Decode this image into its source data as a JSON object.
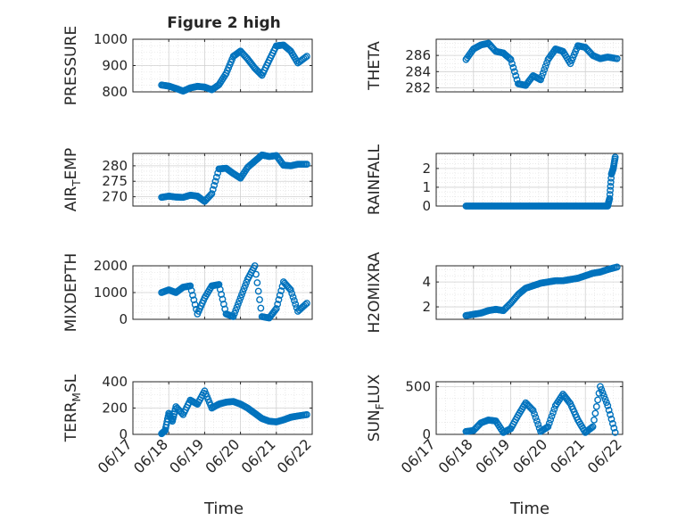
{
  "figure": {
    "title": "Figure 2 high",
    "xlabel": "Time",
    "marker_color": "#0072bd"
  },
  "chart_data": [
    {
      "type": "scatter",
      "ylabel": "PRESSURE",
      "ylim": [
        800,
        1000
      ],
      "yticks": [
        800,
        900,
        1000
      ],
      "ytick_labels": [
        "800",
        "900",
        "1000"
      ],
      "xlim": [
        "06/17",
        "06/22"
      ],
      "xticks": [
        "06/17",
        "06/18",
        "06/19",
        "06/20",
        "06/21",
        "06/22"
      ],
      "show_xtick_labels": false,
      "grid": true,
      "series": [
        {
          "x": [
            0.8,
            1.0,
            1.2,
            1.4,
            1.6,
            1.8,
            2.0,
            2.2,
            2.4,
            2.6,
            2.8,
            3.0,
            3.2,
            3.4,
            3.6,
            3.8,
            4.0,
            4.2,
            4.4,
            4.6,
            4.85
          ],
          "y": [
            826,
            822,
            813,
            803,
            815,
            821,
            818,
            808,
            827,
            870,
            935,
            955,
            925,
            890,
            863,
            920,
            975,
            978,
            955,
            910,
            935
          ]
        }
      ]
    },
    {
      "type": "scatter",
      "ylabel": "THETA",
      "ylim": [
        281.5,
        288
      ],
      "yticks": [
        282,
        284,
        286
      ],
      "ytick_labels": [
        "282",
        "284",
        "286"
      ],
      "xlim": [
        "06/17",
        "06/22"
      ],
      "xticks": [
        "06/17",
        "06/18",
        "06/19",
        "06/20",
        "06/21",
        "06/22"
      ],
      "show_xtick_labels": false,
      "grid": true,
      "series": [
        {
          "x": [
            0.8,
            1.0,
            1.2,
            1.4,
            1.6,
            1.8,
            2.0,
            2.2,
            2.4,
            2.6,
            2.8,
            3.0,
            3.2,
            3.4,
            3.6,
            3.8,
            4.0,
            4.2,
            4.4,
            4.6,
            4.85
          ],
          "y": [
            285.5,
            286.8,
            287.3,
            287.5,
            286.5,
            286.3,
            285.5,
            282.5,
            282.3,
            283.5,
            283.0,
            285.5,
            286.8,
            286.5,
            285.0,
            287.2,
            287.0,
            286.0,
            285.6,
            285.8,
            285.6
          ]
        }
      ]
    },
    {
      "type": "scatter",
      "ylabel": "AIR_TEMP",
      "ylim": [
        267,
        284
      ],
      "yticks": [
        270,
        275,
        280
      ],
      "ytick_labels": [
        "270",
        "275",
        "280"
      ],
      "xlim": [
        "06/17",
        "06/22"
      ],
      "xticks": [
        "06/17",
        "06/18",
        "06/19",
        "06/20",
        "06/21",
        "06/22"
      ],
      "show_xtick_labels": false,
      "grid": true,
      "series": [
        {
          "x": [
            0.8,
            1.0,
            1.2,
            1.4,
            1.6,
            1.8,
            2.0,
            2.2,
            2.4,
            2.6,
            2.8,
            3.0,
            3.2,
            3.4,
            3.6,
            3.8,
            4.0,
            4.2,
            4.4,
            4.6,
            4.85
          ],
          "y": [
            269.8,
            270.2,
            269.9,
            269.8,
            270.5,
            270.2,
            268.5,
            271.0,
            279.0,
            279.2,
            277.5,
            276.0,
            279.5,
            281.5,
            283.5,
            283.0,
            283.3,
            280.2,
            280.0,
            280.5,
            280.5
          ]
        }
      ]
    },
    {
      "type": "scatter",
      "ylabel": "RAINFALL",
      "ylim": [
        0,
        2.8
      ],
      "yticks": [
        0,
        1,
        2
      ],
      "ytick_labels": [
        "0",
        "1",
        "2"
      ],
      "xlim": [
        "06/17",
        "06/22"
      ],
      "xticks": [
        "06/17",
        "06/18",
        "06/19",
        "06/20",
        "06/21",
        "06/22"
      ],
      "show_xtick_labels": false,
      "grid": true,
      "series": [
        {
          "x": [
            0.8,
            1.0,
            1.2,
            1.4,
            1.6,
            1.8,
            2.0,
            2.2,
            2.4,
            2.6,
            2.8,
            3.0,
            3.2,
            3.4,
            3.6,
            3.8,
            4.0,
            4.2,
            4.4,
            4.6,
            4.65,
            4.7,
            4.75,
            4.8
          ],
          "y": [
            0,
            0,
            0,
            0,
            0,
            0,
            0,
            0,
            0,
            0,
            0,
            0,
            0,
            0,
            0,
            0,
            0,
            0,
            0,
            0,
            0.4,
            1.7,
            2.0,
            2.6
          ]
        }
      ]
    },
    {
      "type": "scatter",
      "ylabel": "MIXDEPTH",
      "ylim": [
        0,
        2000
      ],
      "yticks": [
        0,
        1000,
        2000
      ],
      "ytick_labels": [
        "0",
        "1000",
        "2000"
      ],
      "xlim": [
        "06/17",
        "06/22"
      ],
      "xticks": [
        "06/17",
        "06/18",
        "06/19",
        "06/20",
        "06/21",
        "06/22"
      ],
      "show_xtick_labels": false,
      "grid": true,
      "series": [
        {
          "x": [
            0.8,
            1.0,
            1.2,
            1.4,
            1.6,
            1.8,
            2.0,
            2.2,
            2.4,
            2.6,
            2.8,
            3.0,
            3.2,
            3.4,
            3.6,
            3.8,
            4.0,
            4.2,
            4.4,
            4.6,
            4.85
          ],
          "y": [
            1000,
            1100,
            1000,
            1200,
            1250,
            200,
            800,
            1250,
            1300,
            200,
            100,
            800,
            1500,
            2000,
            100,
            50,
            400,
            1400,
            1100,
            300,
            600
          ]
        }
      ]
    },
    {
      "type": "scatter",
      "ylabel": "H2OMIXRA",
      "ylim": [
        1,
        5.3
      ],
      "yticks": [
        2,
        4
      ],
      "ytick_labels": [
        "2",
        "4"
      ],
      "xlim": [
        "06/17",
        "06/22"
      ],
      "xticks": [
        "06/17",
        "06/18",
        "06/19",
        "06/20",
        "06/21",
        "06/22"
      ],
      "show_xtick_labels": false,
      "grid": true,
      "series": [
        {
          "x": [
            0.8,
            1.0,
            1.2,
            1.4,
            1.6,
            1.8,
            2.0,
            2.2,
            2.4,
            2.6,
            2.8,
            3.0,
            3.2,
            3.4,
            3.6,
            3.8,
            4.0,
            4.2,
            4.4,
            4.6,
            4.85
          ],
          "y": [
            1.3,
            1.4,
            1.5,
            1.7,
            1.8,
            1.7,
            2.3,
            3.0,
            3.5,
            3.7,
            3.9,
            4.0,
            4.1,
            4.1,
            4.2,
            4.3,
            4.5,
            4.7,
            4.8,
            5.0,
            5.2
          ]
        }
      ]
    },
    {
      "type": "scatter",
      "ylabel": "TERR_MSL",
      "ylim": [
        0,
        400
      ],
      "yticks": [
        0,
        200,
        400
      ],
      "ytick_labels": [
        "0",
        "200",
        "400"
      ],
      "xlim": [
        "06/17",
        "06/22"
      ],
      "xticks": [
        "06/17",
        "06/18",
        "06/19",
        "06/20",
        "06/21",
        "06/22"
      ],
      "xtick_labels": [
        "06/17",
        "06/18",
        "06/19",
        "06/20",
        "06/21",
        "06/22"
      ],
      "show_xtick_labels": true,
      "grid": true,
      "series": [
        {
          "x": [
            0.8,
            0.9,
            1.0,
            1.1,
            1.2,
            1.4,
            1.6,
            1.8,
            2.0,
            2.2,
            2.4,
            2.6,
            2.8,
            3.0,
            3.2,
            3.4,
            3.6,
            3.8,
            4.0,
            4.2,
            4.4,
            4.6,
            4.85
          ],
          "y": [
            5,
            30,
            160,
            100,
            210,
            150,
            260,
            230,
            330,
            200,
            230,
            245,
            250,
            230,
            200,
            160,
            120,
            100,
            95,
            110,
            130,
            140,
            150
          ]
        }
      ]
    },
    {
      "type": "scatter",
      "ylabel": "SUN_FLUX",
      "ylim": [
        0,
        550
      ],
      "yticks": [
        0,
        500
      ],
      "ytick_labels": [
        "0",
        "500"
      ],
      "xlim": [
        "06/17",
        "06/22"
      ],
      "xticks": [
        "06/17",
        "06/18",
        "06/19",
        "06/20",
        "06/21",
        "06/22"
      ],
      "xtick_labels": [
        "06/17",
        "06/18",
        "06/19",
        "06/20",
        "06/21",
        "06/22"
      ],
      "show_xtick_labels": true,
      "grid": true,
      "series": [
        {
          "x": [
            0.8,
            1.0,
            1.2,
            1.4,
            1.6,
            1.8,
            2.0,
            2.2,
            2.4,
            2.6,
            2.8,
            3.0,
            3.2,
            3.4,
            3.6,
            3.8,
            4.0,
            4.2,
            4.4,
            4.6,
            4.8
          ],
          "y": [
            30,
            40,
            120,
            150,
            140,
            20,
            60,
            200,
            330,
            250,
            30,
            80,
            300,
            420,
            320,
            150,
            20,
            80,
            500,
            300,
            20
          ]
        }
      ]
    }
  ]
}
